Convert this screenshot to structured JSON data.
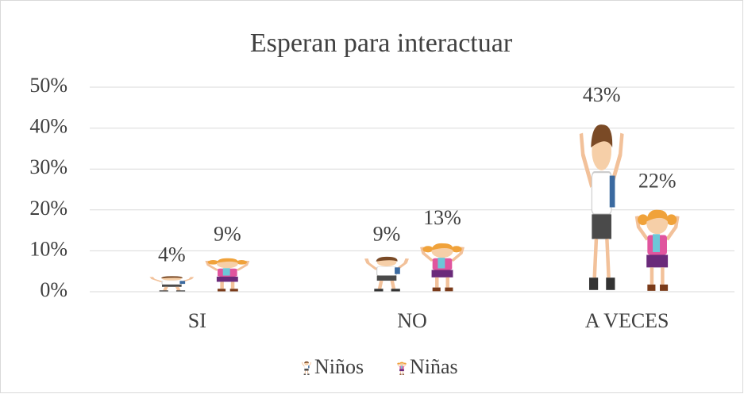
{
  "chart_data": {
    "type": "picture-bar",
    "title": "Esperan para interactuar",
    "categories": [
      "SI",
      "NO",
      "A VECES"
    ],
    "series": [
      {
        "name": "Niños",
        "color": "#7a4a26",
        "values": [
          4,
          9,
          43
        ],
        "value_labels": [
          "4%",
          "9%",
          "43%"
        ]
      },
      {
        "name": "Niñas",
        "color": "#e0559e",
        "values": [
          9,
          13,
          22
        ],
        "value_labels": [
          "9%",
          "13%",
          "22%"
        ]
      }
    ],
    "ylim": [
      0,
      50
    ],
    "yticks": [
      {
        "value": 0,
        "label": "0%"
      },
      {
        "value": 10,
        "label": "10%"
      },
      {
        "value": 20,
        "label": "20%"
      },
      {
        "value": 30,
        "label": "30%"
      },
      {
        "value": 40,
        "label": "40%"
      },
      {
        "value": 50,
        "label": "50%"
      }
    ],
    "grid": true,
    "legend": "bottom"
  }
}
